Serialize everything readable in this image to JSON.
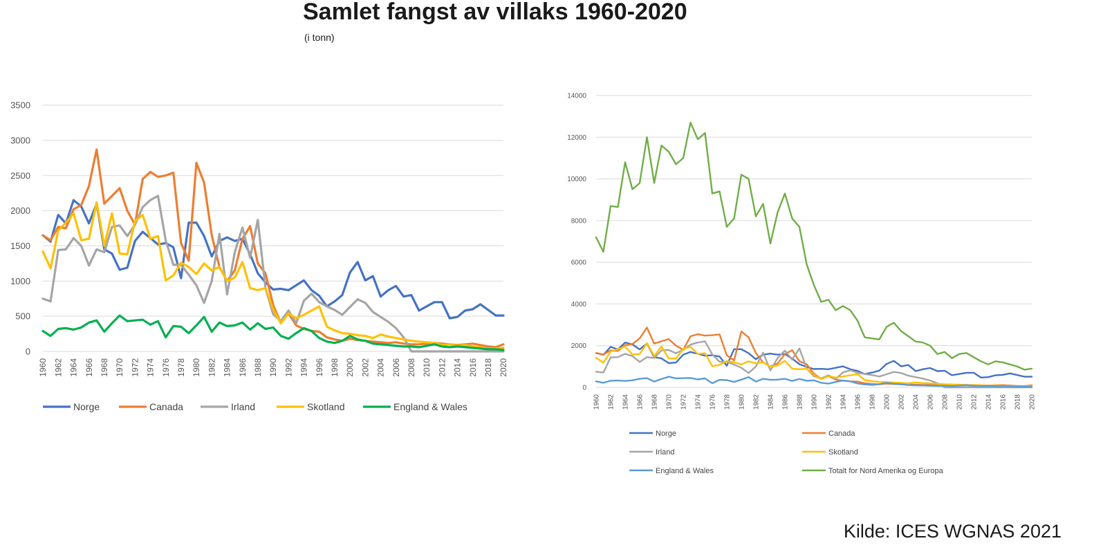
{
  "title": "Samlet fangst av villaks 1960-2020",
  "subtitle": "(i tonn)",
  "source": "Kilde: ICES WGNAS 2021",
  "chart_data": [
    {
      "type": "line",
      "x": [
        1960,
        1961,
        1962,
        1963,
        1964,
        1965,
        1966,
        1967,
        1968,
        1969,
        1970,
        1971,
        1972,
        1973,
        1974,
        1975,
        1976,
        1977,
        1978,
        1979,
        1980,
        1981,
        1982,
        1983,
        1984,
        1985,
        1986,
        1987,
        1988,
        1989,
        1990,
        1991,
        1992,
        1993,
        1994,
        1995,
        1996,
        1997,
        1998,
        1999,
        2000,
        2001,
        2002,
        2003,
        2004,
        2005,
        2006,
        2007,
        2008,
        2009,
        2010,
        2011,
        2012,
        2013,
        2014,
        2015,
        2016,
        2017,
        2018,
        2019,
        2020
      ],
      "x_tick_labels": [
        "1960",
        "1962",
        "1964",
        "1966",
        "1968",
        "1970",
        "1972",
        "1974",
        "1976",
        "1978",
        "1980",
        "1982",
        "1984",
        "1986",
        "1988",
        "1990",
        "1992",
        "1994",
        "1996",
        "1998",
        "2000",
        "2002",
        "2004",
        "2006",
        "2008",
        "2010",
        "2012",
        "2014",
        "2016",
        "2018",
        "2020"
      ],
      "ylim": [
        0,
        3500
      ],
      "y_ticks": [
        0,
        500,
        1000,
        1500,
        2000,
        2500,
        3000,
        3500
      ],
      "grid": true,
      "legend": "bottom",
      "series": [
        {
          "name": "Norge",
          "color": "#4472c4",
          "values": [
            1650,
            1560,
            1940,
            1820,
            2150,
            2060,
            1820,
            2100,
            1450,
            1390,
            1160,
            1190,
            1570,
            1700,
            1610,
            1520,
            1540,
            1480,
            1040,
            1830,
            1830,
            1640,
            1350,
            1570,
            1620,
            1570,
            1600,
            1380,
            1110,
            980,
            880,
            890,
            870,
            940,
            1010,
            870,
            790,
            640,
            710,
            800,
            1120,
            1270,
            1010,
            1070,
            780,
            870,
            930,
            780,
            800,
            580,
            640,
            700,
            700,
            470,
            490,
            580,
            600,
            670,
            590,
            510,
            510
          ]
        },
        {
          "name": "Canada",
          "color": "#ed7d31",
          "values": [
            1650,
            1580,
            1770,
            1750,
            2020,
            2080,
            2350,
            2870,
            2100,
            2210,
            2320,
            2000,
            1800,
            2450,
            2550,
            2480,
            2500,
            2540,
            1540,
            1290,
            2680,
            2400,
            1650,
            1200,
            1000,
            1150,
            1600,
            1780,
            1250,
            1110,
            660,
            400,
            540,
            370,
            320,
            290,
            280,
            200,
            170,
            150,
            180,
            160,
            150,
            140,
            130,
            120,
            130,
            110,
            100,
            100,
            110,
            120,
            110,
            100,
            90,
            100,
            110,
            90,
            70,
            60,
            100
          ]
        },
        {
          "name": "Irland",
          "color": "#a5a5a5",
          "values": [
            750,
            710,
            1440,
            1450,
            1610,
            1500,
            1220,
            1450,
            1410,
            1770,
            1790,
            1640,
            1800,
            2050,
            2150,
            2210,
            1580,
            1230,
            1230,
            1090,
            940,
            690,
            1000,
            1670,
            810,
            1410,
            1760,
            1330,
            1870,
            900,
            530,
            430,
            580,
            400,
            720,
            820,
            700,
            640,
            590,
            520,
            630,
            740,
            690,
            560,
            490,
            420,
            330,
            200,
            0,
            0,
            0,
            0,
            0,
            0,
            0,
            0,
            0,
            0,
            0,
            0,
            0
          ]
        },
        {
          "name": "Skotland",
          "color": "#ffc000",
          "values": [
            1420,
            1180,
            1720,
            1830,
            1960,
            1580,
            1600,
            2120,
            1500,
            1960,
            1390,
            1380,
            1850,
            1940,
            1600,
            1640,
            1010,
            1080,
            1260,
            1200,
            1100,
            1250,
            1150,
            1200,
            1000,
            1050,
            1270,
            900,
            870,
            900,
            600,
            400,
            540,
            470,
            520,
            580,
            640,
            350,
            300,
            260,
            250,
            230,
            220,
            190,
            240,
            210,
            190,
            170,
            150,
            140,
            130,
            120,
            90,
            100,
            80,
            90,
            70,
            60,
            40,
            40,
            50
          ]
        },
        {
          "name": "England & Wales",
          "color": "#00b050",
          "values": [
            290,
            220,
            320,
            330,
            310,
            340,
            410,
            440,
            280,
            400,
            510,
            430,
            440,
            450,
            380,
            430,
            200,
            360,
            350,
            260,
            370,
            490,
            280,
            410,
            360,
            370,
            410,
            310,
            400,
            320,
            340,
            220,
            180,
            260,
            330,
            290,
            190,
            140,
            120,
            150,
            220,
            170,
            150,
            110,
            100,
            90,
            80,
            70,
            70,
            60,
            80,
            100,
            70,
            60,
            70,
            60,
            50,
            40,
            30,
            30,
            20
          ]
        }
      ]
    },
    {
      "type": "line",
      "x": [
        1960,
        1961,
        1962,
        1963,
        1964,
        1965,
        1966,
        1967,
        1968,
        1969,
        1970,
        1971,
        1972,
        1973,
        1974,
        1975,
        1976,
        1977,
        1978,
        1979,
        1980,
        1981,
        1982,
        1983,
        1984,
        1985,
        1986,
        1987,
        1988,
        1989,
        1990,
        1991,
        1992,
        1993,
        1994,
        1995,
        1996,
        1997,
        1998,
        1999,
        2000,
        2001,
        2002,
        2003,
        2004,
        2005,
        2006,
        2007,
        2008,
        2009,
        2010,
        2011,
        2012,
        2013,
        2014,
        2015,
        2016,
        2017,
        2018,
        2019,
        2020
      ],
      "x_tick_labels": [
        "1960",
        "1962",
        "1964",
        "1966",
        "1968",
        "1970",
        "1972",
        "1974",
        "1976",
        "1978",
        "1980",
        "1982",
        "1984",
        "1986",
        "1988",
        "1990",
        "1992",
        "1994",
        "1996",
        "1998",
        "2000",
        "2002",
        "2004",
        "2006",
        "2008",
        "2010",
        "2012",
        "2014",
        "2016",
        "2018",
        "2020"
      ],
      "ylim": [
        0,
        14000
      ],
      "y_ticks": [
        0,
        2000,
        4000,
        6000,
        8000,
        10000,
        12000,
        14000
      ],
      "grid": true,
      "legend": "bottom",
      "series": [
        {
          "name": "Norge",
          "color": "#4472c4",
          "values": [
            1650,
            1560,
            1940,
            1820,
            2150,
            2060,
            1820,
            2100,
            1450,
            1390,
            1160,
            1190,
            1570,
            1700,
            1610,
            1520,
            1540,
            1480,
            1040,
            1830,
            1830,
            1640,
            1350,
            1570,
            1620,
            1570,
            1600,
            1380,
            1110,
            980,
            880,
            890,
            870,
            940,
            1010,
            870,
            790,
            640,
            710,
            800,
            1120,
            1270,
            1010,
            1070,
            780,
            870,
            930,
            780,
            800,
            580,
            640,
            700,
            700,
            470,
            490,
            580,
            600,
            670,
            590,
            510,
            510
          ]
        },
        {
          "name": "Canada",
          "color": "#ed7d31",
          "values": [
            1650,
            1580,
            1770,
            1750,
            2020,
            2080,
            2350,
            2870,
            2100,
            2210,
            2320,
            2000,
            1800,
            2450,
            2550,
            2480,
            2500,
            2540,
            1540,
            1290,
            2680,
            2400,
            1650,
            1200,
            1000,
            1150,
            1600,
            1780,
            1250,
            1110,
            660,
            400,
            540,
            370,
            320,
            290,
            280,
            200,
            170,
            150,
            180,
            160,
            150,
            140,
            130,
            120,
            130,
            110,
            100,
            100,
            110,
            120,
            110,
            100,
            90,
            100,
            110,
            90,
            70,
            60,
            100
          ]
        },
        {
          "name": "Irland",
          "color": "#a5a5a5",
          "values": [
            750,
            710,
            1440,
            1450,
            1610,
            1500,
            1220,
            1450,
            1410,
            1770,
            1790,
            1640,
            1800,
            2050,
            2150,
            2210,
            1580,
            1230,
            1230,
            1090,
            940,
            690,
            1000,
            1670,
            810,
            1410,
            1760,
            1330,
            1870,
            900,
            530,
            430,
            580,
            400,
            720,
            820,
            700,
            640,
            590,
            520,
            630,
            740,
            690,
            560,
            490,
            420,
            330,
            200,
            0,
            0,
            0,
            0,
            0,
            0,
            0,
            0,
            0,
            0,
            0,
            0,
            0
          ]
        },
        {
          "name": "Skotland",
          "color": "#ffc000",
          "values": [
            1420,
            1180,
            1720,
            1830,
            1960,
            1580,
            1600,
            2120,
            1500,
            1960,
            1390,
            1380,
            1850,
            1940,
            1600,
            1640,
            1010,
            1080,
            1260,
            1200,
            1100,
            1250,
            1150,
            1200,
            1000,
            1050,
            1270,
            900,
            870,
            900,
            600,
            400,
            540,
            470,
            520,
            580,
            640,
            350,
            300,
            260,
            250,
            230,
            220,
            190,
            240,
            210,
            190,
            170,
            150,
            140,
            130,
            120,
            90,
            100,
            80,
            90,
            70,
            60,
            40,
            40,
            50
          ]
        },
        {
          "name": "England & Wales",
          "color": "#5b9bd5",
          "values": [
            290,
            220,
            320,
            330,
            310,
            340,
            410,
            440,
            280,
            400,
            510,
            430,
            440,
            450,
            380,
            430,
            200,
            360,
            350,
            260,
            370,
            490,
            280,
            410,
            360,
            370,
            410,
            310,
            400,
            320,
            340,
            220,
            180,
            260,
            330,
            290,
            190,
            140,
            120,
            150,
            220,
            170,
            150,
            110,
            100,
            90,
            80,
            70,
            70,
            60,
            80,
            100,
            70,
            60,
            70,
            60,
            50,
            40,
            30,
            30,
            20
          ]
        },
        {
          "name": "Totalt for Nord Amerika og Europa",
          "color": "#70ad47",
          "values": [
            7200,
            6500,
            8700,
            8650,
            10800,
            9500,
            9800,
            12000,
            9800,
            11600,
            11300,
            10700,
            11000,
            12700,
            11900,
            12200,
            9300,
            9400,
            7700,
            8100,
            10200,
            10000,
            8200,
            8800,
            6900,
            8400,
            9300,
            8100,
            7700,
            5900,
            4900,
            4100,
            4200,
            3700,
            3900,
            3700,
            3200,
            2400,
            2350,
            2300,
            2900,
            3100,
            2700,
            2450,
            2200,
            2150,
            2000,
            1600,
            1700,
            1400,
            1600,
            1650,
            1450,
            1250,
            1100,
            1250,
            1200,
            1100,
            1000,
            850,
            900
          ]
        }
      ]
    }
  ]
}
